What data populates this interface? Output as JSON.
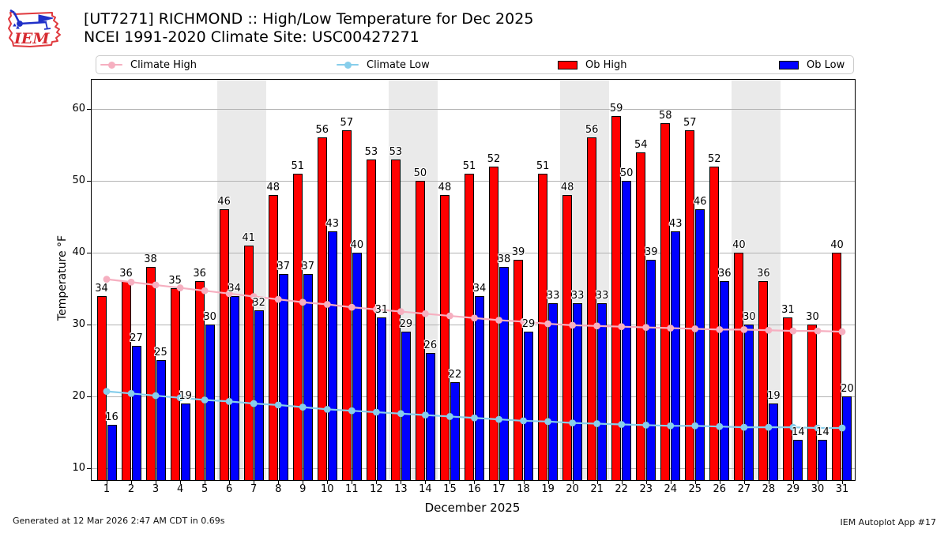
{
  "header": {
    "title_line1": "[UT7271] RICHMOND :: High/Low Temperature for Dec 2025",
    "title_line2": "NCEI 1991-2020 Climate Site: USC00427271",
    "logo_text": "IEM"
  },
  "legend": [
    {
      "label": "Climate High",
      "type": "line",
      "color": "#f6afc0"
    },
    {
      "label": "Climate Low",
      "type": "line",
      "color": "#87ceeb"
    },
    {
      "label": "Ob High",
      "type": "patch",
      "color": "#ff0000"
    },
    {
      "label": "Ob Low",
      "type": "patch",
      "color": "#0000ff"
    }
  ],
  "chart_data": {
    "type": "bar",
    "title": "[UT7271] RICHMOND :: High/Low Temperature for Dec 2025",
    "subtitle": "NCEI 1991-2020 Climate Site: USC00427271",
    "xlabel": "December 2025",
    "ylabel": "Temperature °F",
    "x": [
      1,
      2,
      3,
      4,
      5,
      6,
      7,
      8,
      9,
      10,
      11,
      12,
      13,
      14,
      15,
      16,
      17,
      18,
      19,
      20,
      21,
      22,
      23,
      24,
      25,
      26,
      27,
      28,
      29,
      30,
      31
    ],
    "series": [
      {
        "name": "Ob High",
        "type": "bar",
        "color": "#ff0000",
        "values": [
          34,
          36,
          38,
          35,
          36,
          46,
          41,
          48,
          51,
          56,
          57,
          53,
          53,
          50,
          48,
          51,
          52,
          39,
          51,
          48,
          56,
          59,
          54,
          58,
          57,
          52,
          40,
          36,
          31,
          30,
          40
        ]
      },
      {
        "name": "Ob Low",
        "type": "bar",
        "color": "#0000ff",
        "values": [
          16,
          27,
          25,
          19,
          30,
          34,
          32,
          37,
          37,
          43,
          40,
          31,
          29,
          26,
          22,
          34,
          38,
          29,
          33,
          33,
          33,
          50,
          39,
          43,
          46,
          36,
          30,
          19,
          14,
          14,
          20
        ]
      },
      {
        "name": "Climate High",
        "type": "line",
        "color": "#f6afc0",
        "values": [
          36.3,
          35.9,
          35.5,
          35.1,
          34.7,
          34.3,
          33.9,
          33.5,
          33.1,
          32.8,
          32.4,
          32.1,
          31.8,
          31.5,
          31.2,
          30.9,
          30.6,
          30.4,
          30.1,
          29.9,
          29.8,
          29.7,
          29.6,
          29.5,
          29.4,
          29.3,
          29.3,
          29.2,
          29.1,
          29.1,
          29.0
        ]
      },
      {
        "name": "Climate Low",
        "type": "line",
        "color": "#87ceeb",
        "values": [
          20.7,
          20.4,
          20.1,
          19.8,
          19.5,
          19.3,
          19.0,
          18.8,
          18.5,
          18.2,
          18.0,
          17.8,
          17.6,
          17.4,
          17.2,
          17.0,
          16.8,
          16.6,
          16.5,
          16.3,
          16.2,
          16.1,
          16.0,
          15.9,
          15.9,
          15.8,
          15.7,
          15.7,
          15.7,
          15.6,
          15.6
        ]
      }
    ],
    "yticks": [
      10,
      20,
      30,
      40,
      50,
      60
    ],
    "ylim": [
      8.35,
      64.06
    ],
    "weekend_shading": [
      [
        6,
        7
      ],
      [
        13,
        14
      ],
      [
        20,
        21
      ],
      [
        27,
        28
      ]
    ],
    "grid": "horizontal",
    "legend_position": "top"
  },
  "footer": {
    "generated": "Generated at 12 Mar 2026 2:47 AM CDT in 0.69s",
    "app": "IEM Autoplot App #17"
  }
}
